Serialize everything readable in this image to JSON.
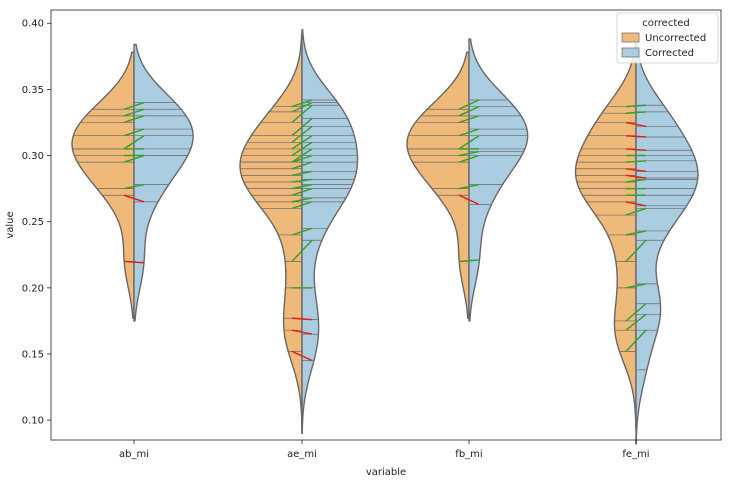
{
  "chart_data": {
    "type": "violin",
    "split": true,
    "xlabel": "variable",
    "ylabel": "value",
    "ylim": [
      0.085,
      0.41
    ],
    "yticks": [
      0.1,
      0.15,
      0.2,
      0.25,
      0.3,
      0.35,
      0.4
    ],
    "ytick_labels": [
      "0.10",
      "0.15",
      "0.20",
      "0.25",
      "0.30",
      "0.35",
      "0.40"
    ],
    "categories": [
      "ab_mi",
      "ae_mi",
      "fb_mi",
      "fe_mi"
    ],
    "grid": false,
    "legend": {
      "title": "corrected",
      "placement": "top-right",
      "entries": [
        {
          "label": "Uncorrected",
          "color": "#efb979"
        },
        {
          "label": "Corrected",
          "color": "#abcde2"
        }
      ]
    },
    "colors": {
      "uncorrected": "#efb979",
      "corrected": "#abcde2",
      "outline": "#686868",
      "increase_line": "#3aa02c",
      "decrease_line": "#e0241c"
    },
    "series": [
      {
        "name": "Uncorrected",
        "values_by_category": {
          "ab_mi": [
            0.335,
            0.33,
            0.325,
            0.315,
            0.305,
            0.305,
            0.3,
            0.295,
            0.275,
            0.27,
            0.22
          ],
          "ae_mi": [
            0.337,
            0.333,
            0.325,
            0.315,
            0.31,
            0.305,
            0.3,
            0.295,
            0.295,
            0.29,
            0.285,
            0.28,
            0.275,
            0.27,
            0.265,
            0.26,
            0.24,
            0.22,
            0.2,
            0.177,
            0.168,
            0.152
          ],
          "fb_mi": [
            0.335,
            0.33,
            0.325,
            0.315,
            0.305,
            0.305,
            0.3,
            0.295,
            0.275,
            0.27,
            0.22
          ],
          "fe_mi": [
            0.337,
            0.332,
            0.325,
            0.315,
            0.305,
            0.3,
            0.295,
            0.29,
            0.285,
            0.28,
            0.275,
            0.27,
            0.265,
            0.255,
            0.24,
            0.22,
            0.2,
            0.175,
            0.168,
            0.152
          ]
        }
      },
      {
        "name": "Corrected",
        "values_by_category": {
          "ab_mi": [
            0.34,
            0.335,
            0.33,
            0.32,
            0.315,
            0.305,
            0.3,
            0.3,
            0.278,
            0.265,
            0.219
          ],
          "ae_mi": [
            0.342,
            0.34,
            0.338,
            0.328,
            0.322,
            0.315,
            0.31,
            0.305,
            0.3,
            0.295,
            0.288,
            0.282,
            0.278,
            0.275,
            0.268,
            0.265,
            0.245,
            0.236,
            0.2,
            0.176,
            0.165,
            0.145
          ],
          "fb_mi": [
            0.342,
            0.337,
            0.33,
            0.32,
            0.315,
            0.305,
            0.303,
            0.3,
            0.278,
            0.263,
            0.221
          ],
          "fe_mi": [
            0.338,
            0.333,
            0.322,
            0.314,
            0.304,
            0.3,
            0.296,
            0.288,
            0.283,
            0.282,
            0.275,
            0.27,
            0.262,
            0.26,
            0.243,
            0.236,
            0.203,
            0.188,
            0.18,
            0.168,
            0.138
          ]
        }
      }
    ],
    "violin_extent": {
      "ab_mi": {
        "uncorrected": [
          0.177,
          0.378
        ],
        "corrected": [
          0.175,
          0.384
        ]
      },
      "ae_mi": {
        "uncorrected": [
          0.09,
          0.392
        ],
        "corrected": [
          0.09,
          0.395
        ]
      },
      "fb_mi": {
        "uncorrected": [
          0.177,
          0.378
        ],
        "corrected": [
          0.175,
          0.388
        ]
      },
      "fe_mi": {
        "uncorrected": [
          0.095,
          0.385
        ],
        "corrected": [
          0.082,
          0.392
        ]
      }
    }
  }
}
